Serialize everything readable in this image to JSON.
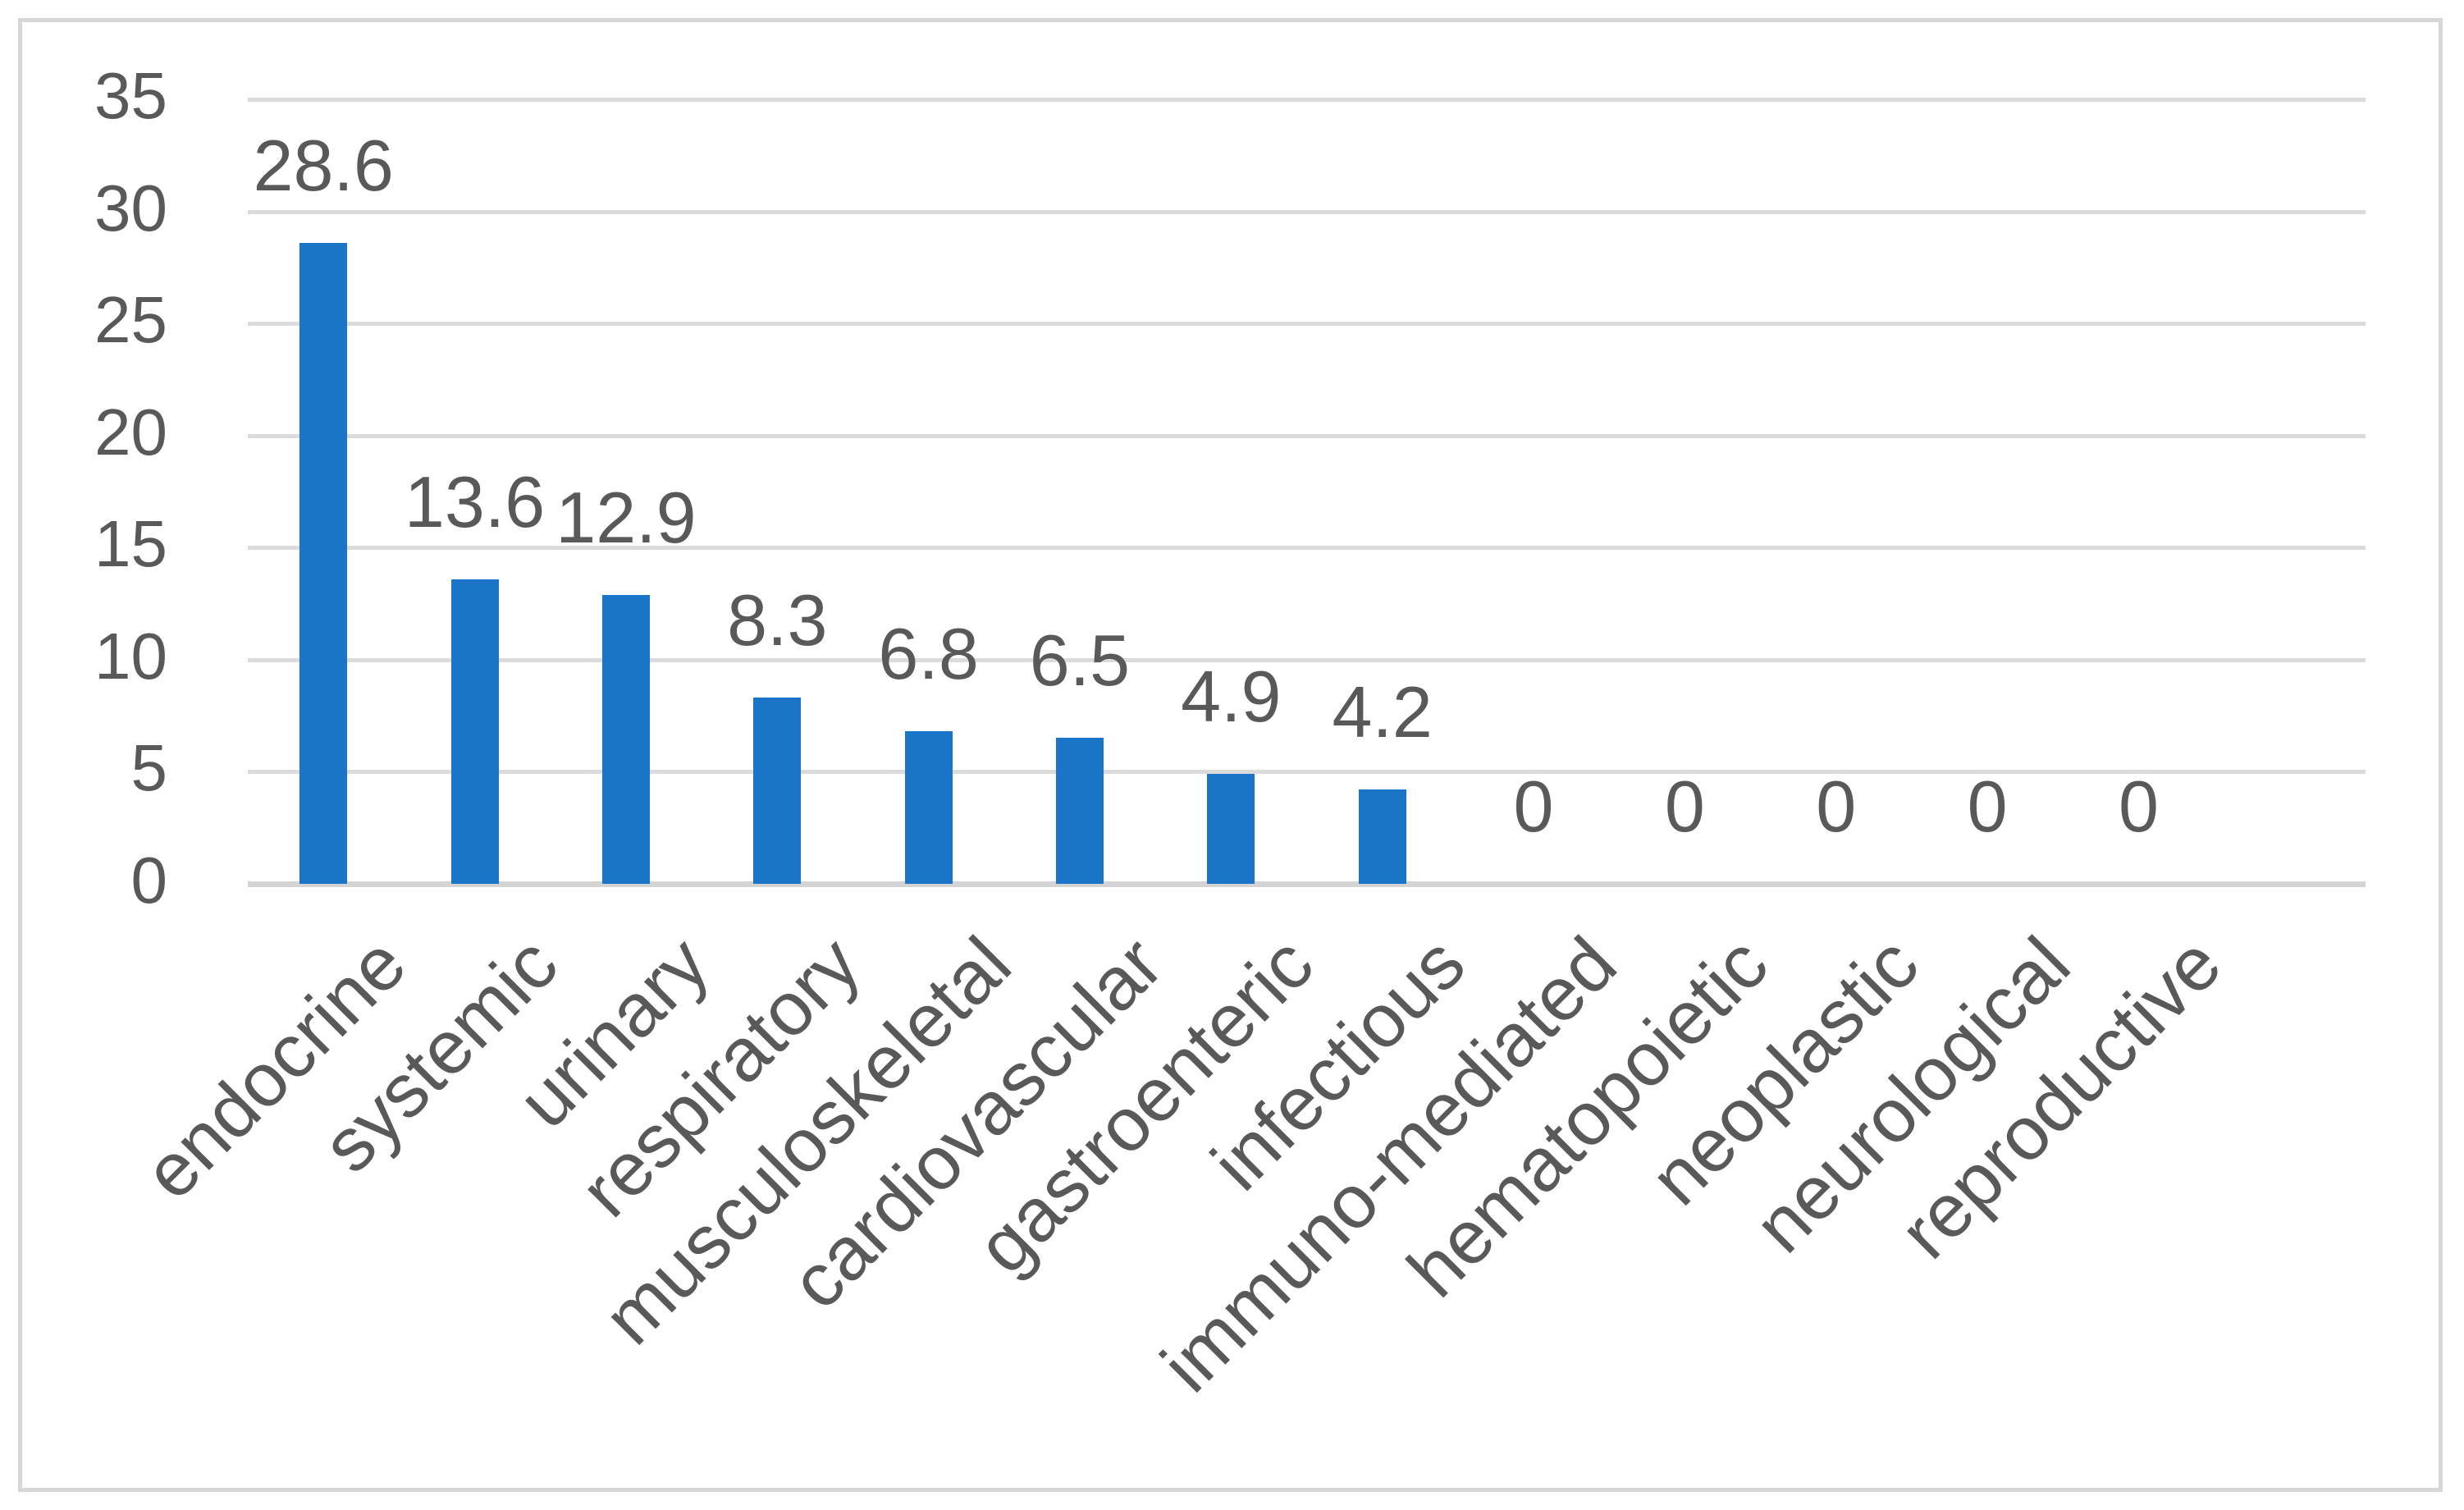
{
  "chart_data": {
    "type": "bar",
    "title": "",
    "xlabel": "",
    "ylabel": "",
    "categories": [
      "endocrine",
      "systemic",
      "urinary",
      "respiratory",
      "musculoskeletal",
      "cardiovascular",
      "gastroenteric",
      "infectious",
      "immuno-mediated",
      "hematopoietic",
      "neoplastic",
      "neurological",
      "reproductive"
    ],
    "values": [
      28.6,
      13.6,
      12.9,
      8.3,
      6.8,
      6.5,
      4.9,
      4.2,
      0,
      0,
      0,
      0,
      0
    ],
    "data_labels": [
      "28.6",
      "13.6",
      "12.9",
      "8.3",
      "6.8",
      "6.5",
      "4.9",
      "4.2",
      "0",
      "0",
      "0",
      "0",
      "0"
    ],
    "ylim": [
      0,
      35
    ],
    "ytick_step": 5,
    "ytick_labels": [
      "0",
      "5",
      "10",
      "15",
      "20",
      "25",
      "30",
      "35"
    ],
    "grid": true,
    "legend_visible": false,
    "x_label_rotation_deg": 45,
    "bar_color": "#1A74C8",
    "text_color": "#595959",
    "gridline_color": "#DBDBDB",
    "axis_line_color": "#D4D4D4",
    "frame_border_color": "#D7D7D7",
    "background_color": "#FFFFFF"
  }
}
